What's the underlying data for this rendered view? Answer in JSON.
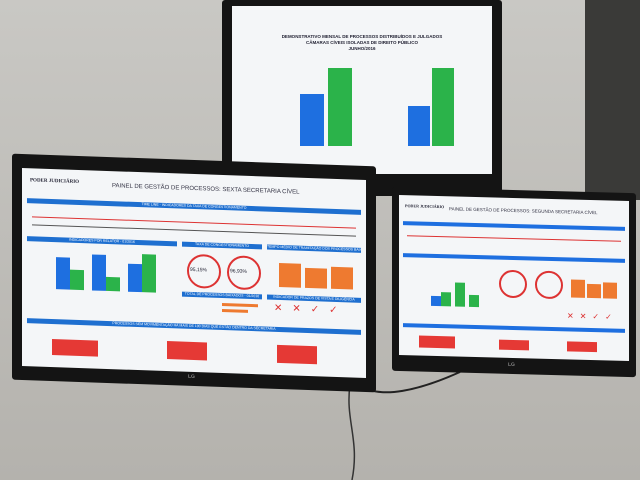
{
  "top_screen": {
    "title": [
      "DEMONSTRATIVO MENSAL DE PROCESSOS DISTRIBUÍDOS E JULGADOS",
      "CÂMARAS CÍVEIS ISOLADAS DE DIREITO PÚBLICO",
      "JUNHO/2016"
    ]
  },
  "left_screen": {
    "logo": "PODER JUDICIÁRIO",
    "title": "PAINEL DE GESTÃO DE PROCESSOS: SEXTA SECRETARIA CÍVEL",
    "sections": [
      "TIME LINE - INDICADORES DA TAXA DE CONGESTIONAMENTO",
      "INDICADORES POR RELATOR - 01/2016",
      "TAXA DE CONGESTIONAMENTO",
      "TEMPO MÉDIO DE TRAMITAÇÃO DOS PROCESSOS BAIXADOS - 01/2016",
      "TOTAL DE PROCESSOS BAIXADOS - 01/2016",
      "INDICADOR DE PRAZOS DE VISTA E DILIGÊNCIA",
      "PROCESSOS SEM MOVIMENTAÇÃO HÁ MAIS DE 100 DIAS QUE ESTÃO DENTRO DA SECRETARIA"
    ],
    "gauges": [
      "95,15%",
      "96,93%"
    ]
  },
  "right_screen": {
    "logo": "PODER JUDICIÁRIO",
    "title": "PAINEL DE GESTÃO DE PROCESSOS: SEGUNDA SECRETARIA CÍVEL"
  },
  "brand": "LG"
}
